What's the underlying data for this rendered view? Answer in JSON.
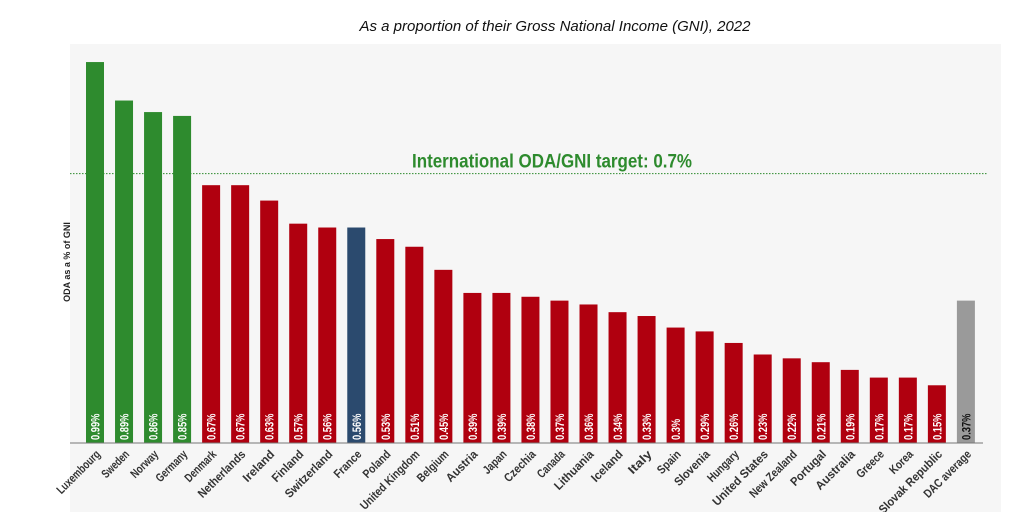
{
  "chart_data": {
    "type": "bar",
    "title": "As a proportion of their Gross National Income (GNI), 2022",
    "xlabel": "",
    "ylabel": "ODA as a % of GNI",
    "ylim": [
      0,
      1.0
    ],
    "grid": false,
    "target": {
      "value": 0.7,
      "label": "International ODA/GNI target: 0.7%",
      "color": "#2e8b2e"
    },
    "categories": [
      "Luxembourg",
      "Sweden",
      "Norway",
      "Germany",
      "Denmark",
      "Netherlands",
      "Ireland",
      "Finland",
      "Switzerland",
      "France",
      "Poland",
      "United Kingdom",
      "Belgium",
      "Austria",
      "Japan",
      "Czechia",
      "Canada",
      "Lithuania",
      "Iceland",
      "Italy",
      "Spain",
      "Slovenia",
      "Hungary",
      "United States",
      "New Zealand",
      "Portugal",
      "Australia",
      "Greece",
      "Korea",
      "Slovak Republic",
      "DAC average"
    ],
    "values": [
      0.99,
      0.89,
      0.86,
      0.85,
      0.67,
      0.67,
      0.63,
      0.57,
      0.56,
      0.56,
      0.53,
      0.51,
      0.45,
      0.39,
      0.39,
      0.38,
      0.37,
      0.36,
      0.34,
      0.33,
      0.3,
      0.29,
      0.26,
      0.23,
      0.22,
      0.21,
      0.19,
      0.17,
      0.17,
      0.15,
      0.37
    ],
    "labels": [
      "0.99%",
      "0.89%",
      "0.86%",
      "0.85%",
      "0.67%",
      "0.67%",
      "0.63%",
      "0.57%",
      "0.56%",
      "0.56%",
      "0.53%",
      "0.51%",
      "0.45%",
      "0.39%",
      "0.39%",
      "0.38%",
      "0.37%",
      "0.36%",
      "0.34%",
      "0.33%",
      "0.3%",
      "0.29%",
      "0.26%",
      "0.23%",
      "0.22%",
      "0.21%",
      "0.19%",
      "0.17%",
      "0.17%",
      "0.15%",
      "0.37%"
    ],
    "colors": {
      "above_target": "#2e8b2e",
      "below_target": "#b0000f",
      "highlight": "#2b4a6e",
      "average": "#9a9a9a"
    },
    "highlight": "France",
    "average": "DAC average"
  }
}
